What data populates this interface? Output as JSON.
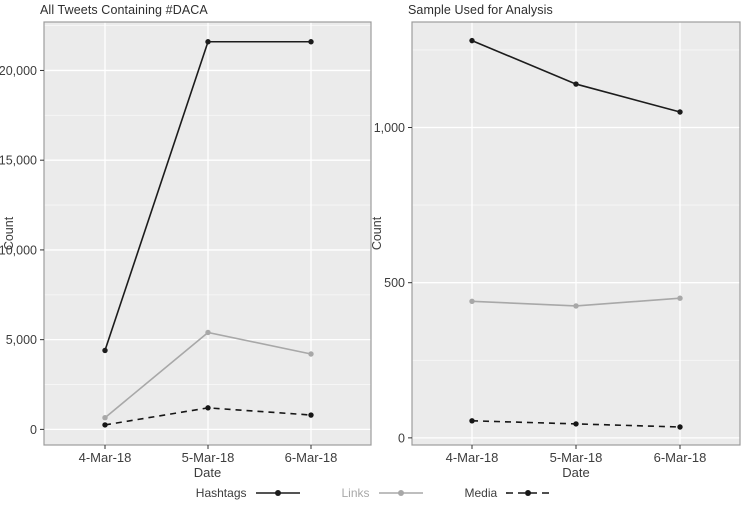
{
  "colors": {
    "panel_bg": "#ebebeb",
    "grid_major": "#ffffff",
    "grid_minor": "#f7f7f7",
    "panel_border": "#9c9c9c",
    "tick": "#333333",
    "text": "#3d3d3d",
    "title_text": "#2e2e2e",
    "hashtags": "#1c1c1c",
    "links": "#a8a8a8",
    "media": "#161616"
  },
  "legend": {
    "items": [
      {
        "label": "Hashtags",
        "series": "hashtags",
        "color": "#1c1c1c",
        "dash": "solid",
        "label_color": "#3d3d3d"
      },
      {
        "label": "Links",
        "series": "links",
        "color": "#a8a8a8",
        "dash": "solid",
        "label_color": "#a8a8a8"
      },
      {
        "label": "Media",
        "series": "media",
        "color": "#161616",
        "dash": "dashed",
        "label_color": "#3d3d3d"
      }
    ]
  },
  "chart_data": [
    {
      "type": "line",
      "title": "All Tweets Containing #DACA",
      "xlabel": "Date",
      "ylabel": "Count",
      "categories": [
        "4-Mar-18",
        "5-Mar-18",
        "6-Mar-18"
      ],
      "series": [
        {
          "name": "Hashtags",
          "values": [
            4400,
            21600,
            21600
          ],
          "color": "#1c1c1c",
          "dash": "solid"
        },
        {
          "name": "Links",
          "values": [
            650,
            5400,
            4200
          ],
          "color": "#a8a8a8",
          "dash": "solid"
        },
        {
          "name": "Media",
          "values": [
            250,
            1200,
            800
          ],
          "color": "#161616",
          "dash": "dashed"
        }
      ],
      "ylim": [
        -870,
        22700
      ],
      "yticks": [
        0,
        5000,
        10000,
        15000,
        20000
      ],
      "ytick_labels": [
        "0",
        "5,000",
        "10,000",
        "15,000",
        "20,000"
      ],
      "yminor": [
        2500,
        7500,
        12500,
        17500,
        22500
      ],
      "grid": true,
      "legend_position": "bottom"
    },
    {
      "type": "line",
      "title": "Sample Used for Analysis",
      "xlabel": "Date",
      "ylabel": "Count",
      "categories": [
        "4-Mar-18",
        "5-Mar-18",
        "6-Mar-18"
      ],
      "series": [
        {
          "name": "Hashtags",
          "values": [
            1280,
            1140,
            1050
          ],
          "color": "#1c1c1c",
          "dash": "solid"
        },
        {
          "name": "Links",
          "values": [
            440,
            425,
            450
          ],
          "color": "#a8a8a8",
          "dash": "solid"
        },
        {
          "name": "Media",
          "values": [
            55,
            45,
            35
          ],
          "color": "#161616",
          "dash": "dashed"
        }
      ],
      "ylim": [
        -23,
        1340
      ],
      "yticks": [
        0,
        500,
        1000
      ],
      "ytick_labels": [
        "0",
        "500",
        "1,000"
      ],
      "yminor": [
        250,
        750,
        1250
      ],
      "grid": true,
      "legend_position": "bottom"
    }
  ]
}
